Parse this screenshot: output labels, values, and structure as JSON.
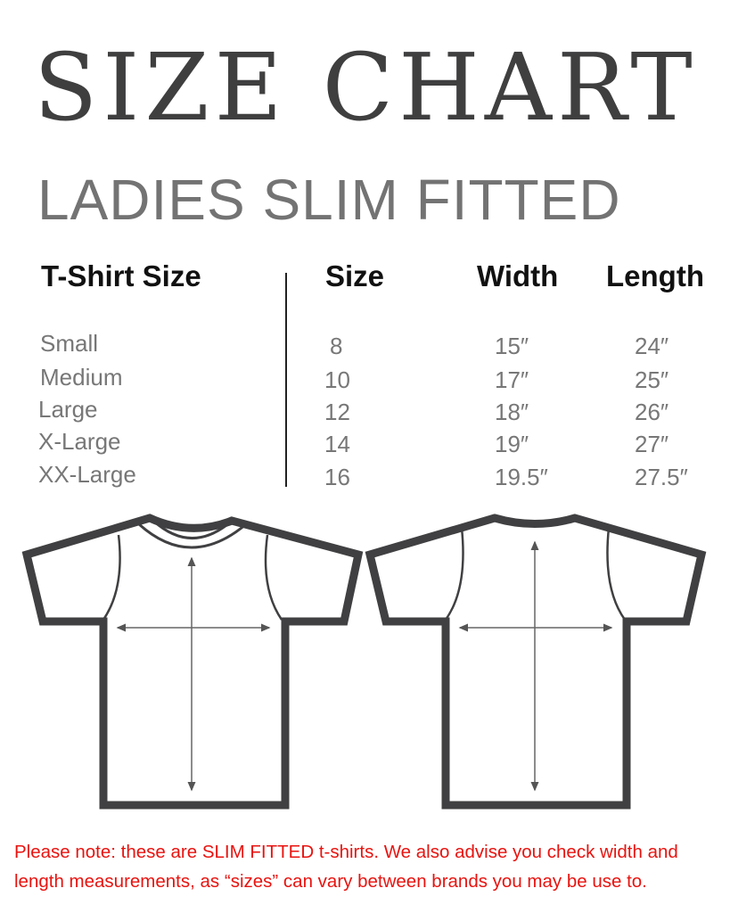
{
  "title": "SIZE CHART",
  "subtitle": "LADIES SLIM FITTED",
  "table": {
    "headers": [
      "T-Shirt Size",
      "Size",
      "Width",
      "Length"
    ],
    "rows": [
      [
        "Small",
        "8",
        "15″",
        "24″"
      ],
      [
        "Medium",
        "10",
        "17″",
        "25″"
      ],
      [
        "Large",
        "12",
        "18″",
        "26″"
      ],
      [
        "X-Large",
        "14",
        "19″",
        "27″"
      ],
      [
        "XX-Large",
        "16",
        "19.5″",
        "27.5″"
      ]
    ]
  },
  "diagrams": {
    "front": "front-tshirt",
    "back": "back-tshirt"
  },
  "note": {
    "line1": "Please note: these are SLIM FITTED t-shirts. We also advise you check width and",
    "line2": "length measurements, as  “sizes” can vary between brands you may be use to."
  },
  "colors": {
    "title": "#3f3f40",
    "outline": "#404042",
    "note": "#e8130f"
  }
}
